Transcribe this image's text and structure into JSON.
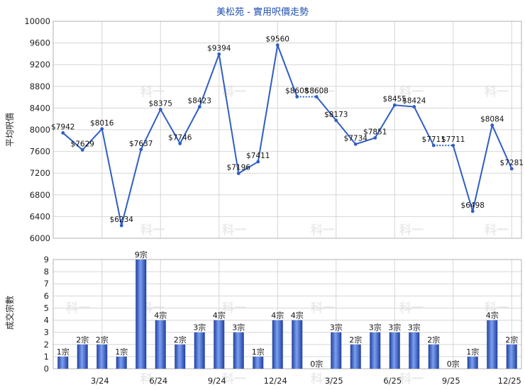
{
  "chart_data": [
    {
      "type": "line",
      "title": "美松苑 - 實用呎價走勢",
      "ylabel": "平均呎價",
      "ylim": [
        6000,
        10000
      ],
      "yticks": [
        6000,
        6400,
        6800,
        7200,
        7600,
        8000,
        8400,
        8800,
        9200,
        9600,
        10000
      ],
      "color": "#2f5ec4",
      "values": [
        7942,
        7629,
        8016,
        6234,
        7637,
        8375,
        7746,
        8423,
        9394,
        7196,
        7411,
        9560,
        8608,
        8608,
        8173,
        7734,
        7851,
        8455,
        8424,
        7711,
        7711,
        6498,
        8084,
        7281
      ],
      "labels": [
        "$7942",
        "$7629",
        "$8016",
        "$6234",
        "$7637",
        "$8375",
        "$7746",
        "$8423",
        "$9394",
        "$7196",
        "$7411",
        "$9560",
        "$8608",
        "$8608",
        "$8173",
        "$7734",
        "$7851",
        "$8455",
        "$8424",
        "$7711",
        "$7711",
        "$6498",
        "$8084",
        "$7281"
      ],
      "dotted_segments": [
        12,
        19
      ]
    },
    {
      "type": "bar",
      "ylabel": "成交宗數",
      "ylim": [
        0,
        9
      ],
      "yticks": [
        0,
        1,
        2,
        3,
        4,
        5,
        6,
        7,
        8,
        9
      ],
      "color": "#3a63c9",
      "values": [
        1,
        2,
        2,
        1,
        9,
        4,
        2,
        3,
        4,
        3,
        1,
        4,
        4,
        0,
        3,
        2,
        3,
        3,
        3,
        2,
        0,
        1,
        4,
        2
      ],
      "labels": [
        "1宗",
        "2宗",
        "2宗",
        "1宗",
        "9宗",
        "4宗",
        "2宗",
        "3宗",
        "4宗",
        "3宗",
        "1宗",
        "4宗",
        "4宗",
        "0宗",
        "3宗",
        "2宗",
        "3宗",
        "3宗",
        "3宗",
        "2宗",
        "0宗",
        "1宗",
        "4宗",
        "2宗"
      ],
      "xticks": [
        {
          "index": 2.5,
          "label": "3/24"
        },
        {
          "index": 5.5,
          "label": "6/24"
        },
        {
          "index": 8.5,
          "label": "9/24"
        },
        {
          "index": 11.5,
          "label": "12/24"
        },
        {
          "index": 14.5,
          "label": "3/25"
        },
        {
          "index": 17.5,
          "label": "6/25"
        },
        {
          "index": 20.5,
          "label": "9/25"
        },
        {
          "index": 23.5,
          "label": "12/25"
        }
      ]
    }
  ],
  "watermark": "科一"
}
